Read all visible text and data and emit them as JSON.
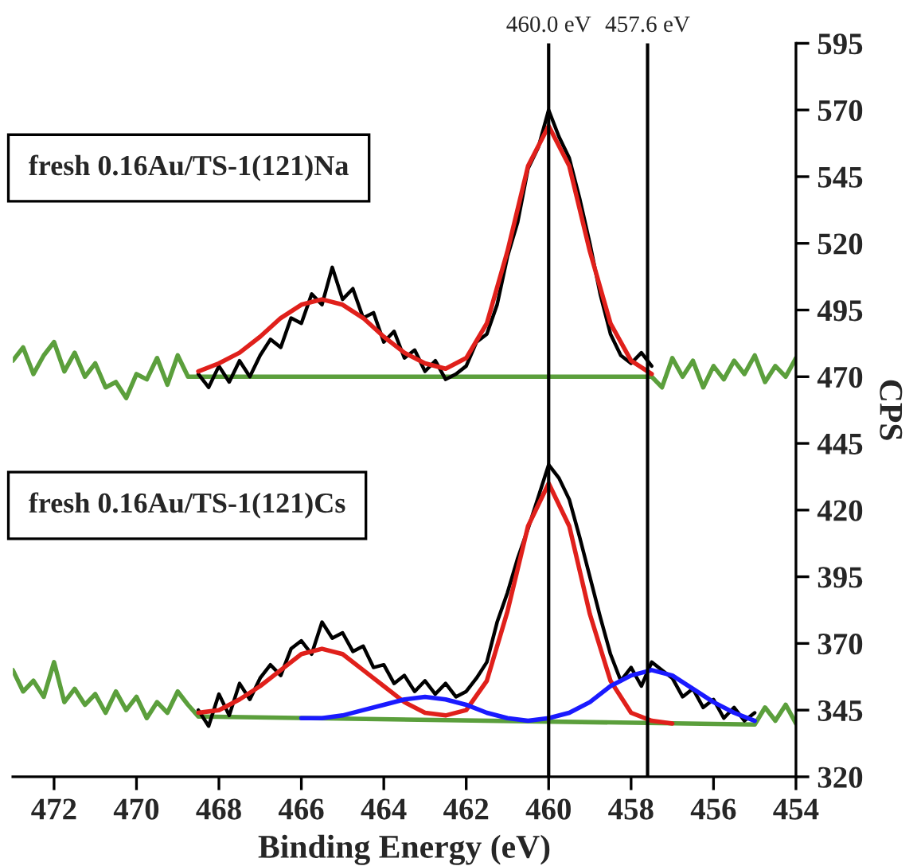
{
  "chart_data": {
    "type": "line",
    "xlabel": "Binding Energy (eV)",
    "ylabel": "CPS",
    "xlim": [
      473,
      454
    ],
    "xticks": [
      472,
      470,
      468,
      466,
      464,
      462,
      460,
      458,
      456,
      454
    ],
    "ylim": [
      320,
      595
    ],
    "yticks": [
      320,
      345,
      370,
      395,
      420,
      445,
      470,
      495,
      520,
      545,
      570,
      595
    ],
    "grid": false,
    "legend": false,
    "annotations": [
      "fresh 0.16Au/TS-1(121)Na",
      "fresh 0.16Au/TS-1(121)Cs"
    ],
    "ref_lines": [
      {
        "axis": "x",
        "value": 460.0,
        "label": "460.0 eV",
        "color": "#000000"
      },
      {
        "axis": "x",
        "value": 457.6,
        "label": "457.6 eV",
        "color": "#000000"
      }
    ],
    "series": [
      {
        "color": "#5b9f3c",
        "x": [
          473,
          472.75,
          472.5,
          472.25,
          472,
          471.75,
          471.5,
          471.25,
          471,
          470.75,
          470.5,
          470.25,
          470,
          469.75,
          469.5,
          469.25,
          469,
          468.75,
          468.5,
          457.5,
          457.25,
          457,
          456.75,
          456.5,
          456.25,
          456,
          455.75,
          455.5,
          455.25,
          455,
          454.75,
          454.5,
          454.25,
          454
        ],
        "values": [
          476,
          481,
          471,
          478,
          483,
          472,
          479,
          470,
          475,
          466,
          468,
          462,
          471,
          469,
          477,
          467,
          478,
          470,
          470,
          470,
          466,
          477,
          470,
          476,
          466,
          474,
          469,
          476,
          471,
          478,
          468,
          474,
          470,
          477
        ]
      },
      {
        "color": "#000000",
        "x": [
          468.5,
          468.25,
          468,
          467.75,
          467.5,
          467.25,
          467,
          466.75,
          466.5,
          466.25,
          466,
          465.75,
          465.5,
          465.25,
          465,
          464.75,
          464.5,
          464.25,
          464,
          463.75,
          463.5,
          463.25,
          463,
          462.75,
          462.5,
          462.25,
          462,
          461.75,
          461.5,
          461.25,
          461,
          460.75,
          460.5,
          460.25,
          460,
          459.75,
          459.5,
          459.25,
          459,
          458.75,
          458.5,
          458.25,
          458,
          457.75,
          457.5
        ],
        "values": [
          471,
          466,
          474,
          468,
          476,
          470,
          478,
          484,
          481,
          492,
          490,
          501,
          497,
          511,
          499,
          503,
          492,
          494,
          483,
          487,
          477,
          480,
          472,
          476,
          469,
          471,
          474,
          483,
          486,
          497,
          515,
          528,
          548,
          556,
          570,
          560,
          552,
          537,
          520,
          501,
          486,
          478,
          475,
          479,
          474
        ]
      },
      {
        "color": "#e0201b",
        "x": [
          468.5,
          468,
          467.5,
          467,
          466.5,
          466,
          465.5,
          465,
          464.5,
          464,
          463.5,
          463,
          462.5,
          462,
          461.5,
          461,
          460.5,
          460,
          459.5,
          459,
          458.5,
          458,
          457.5
        ],
        "values": [
          472,
          475,
          479,
          485,
          492,
          497,
          499,
          497,
          492,
          485,
          479,
          475,
          473,
          477,
          490,
          517,
          549,
          564,
          549,
          517,
          490,
          476,
          471
        ]
      },
      {
        "color": "#5b9f3c",
        "x": [
          473,
          472.75,
          472.5,
          472.25,
          472,
          471.75,
          471.5,
          471.25,
          471,
          470.75,
          470.5,
          470.25,
          470,
          469.75,
          469.5,
          469.25,
          469,
          468.75,
          468.5,
          455,
          454.75,
          454.5,
          454.25,
          454
        ],
        "values": [
          360,
          352,
          356,
          350,
          363,
          348,
          353,
          347,
          351,
          344,
          352,
          345,
          350,
          342,
          348,
          344,
          352,
          347,
          342.6,
          339.6,
          346,
          341,
          347,
          340
        ]
      },
      {
        "color": "#000000",
        "x": [
          468.5,
          468.25,
          468,
          467.75,
          467.5,
          467.25,
          467,
          466.75,
          466.5,
          466.25,
          466,
          465.75,
          465.5,
          465.25,
          465,
          464.75,
          464.5,
          464.25,
          464,
          463.75,
          463.5,
          463.25,
          463,
          462.75,
          462.5,
          462.25,
          462,
          461.75,
          461.5,
          461.25,
          461,
          460.75,
          460.5,
          460.25,
          460,
          459.75,
          459.5,
          459.25,
          459,
          458.75,
          458.5,
          458.25,
          458,
          457.75,
          457.5,
          457.25,
          457,
          456.75,
          456.5,
          456.25,
          456,
          455.75,
          455.5,
          455.25,
          455
        ],
        "values": [
          345,
          339,
          351,
          343,
          355,
          349,
          357,
          362,
          358,
          368,
          371,
          366,
          378,
          372,
          374,
          367,
          369,
          361,
          362,
          355,
          358,
          352,
          356,
          351,
          355,
          350,
          352,
          357,
          363,
          378,
          389,
          402,
          413,
          425,
          437,
          432,
          424,
          410,
          395,
          380,
          366,
          356,
          361,
          354,
          363,
          360,
          357,
          350,
          353,
          346,
          349,
          342,
          346,
          341,
          344
        ]
      },
      {
        "color": "#e0201b",
        "x": [
          468.5,
          468,
          467.5,
          467,
          466.5,
          466,
          465.5,
          465,
          464.5,
          464,
          463.5,
          463,
          462.5,
          462,
          461.5,
          461,
          460.5,
          460,
          459.5,
          459,
          458.5,
          458,
          457.5,
          457
        ],
        "values": [
          344,
          345,
          349,
          354,
          360,
          366,
          368,
          366,
          360,
          354,
          348,
          344,
          343,
          345,
          356,
          382,
          414,
          430,
          414,
          381,
          356,
          344,
          341,
          340
        ]
      },
      {
        "color": "#1a1aff",
        "x": [
          466,
          465.5,
          465,
          464.5,
          464,
          463.5,
          463,
          462.5,
          462,
          461.5,
          461,
          460.5,
          460,
          459.5,
          459,
          458.5,
          458,
          457.5,
          457,
          456.5,
          456,
          455.5,
          455
        ],
        "values": [
          342,
          342,
          343,
          345,
          347,
          349,
          350,
          349,
          347,
          344,
          342,
          341,
          342,
          344,
          348,
          354,
          358,
          360,
          358,
          353,
          348,
          344,
          341
        ]
      }
    ]
  }
}
